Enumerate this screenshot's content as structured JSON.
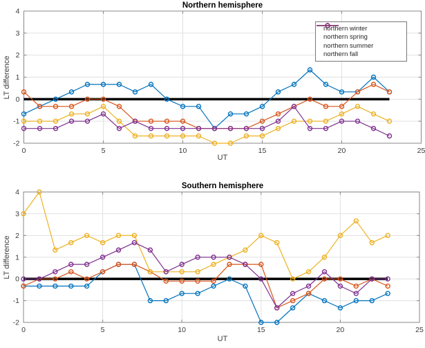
{
  "figure": {
    "background": "#ffffff",
    "grid_color": "#e0e0e0",
    "axis_color": "#888888",
    "tick_label_color": "#3b3b3b",
    "zero_line_color": "#000000"
  },
  "chart_data": [
    {
      "type": "line",
      "title": "Northern hemisphere",
      "xlabel": "UT",
      "ylabel": "LT difference",
      "xlim": [
        0,
        25
      ],
      "ylim": [
        -2,
        4
      ],
      "xticks": [
        0,
        5,
        10,
        15,
        20,
        25
      ],
      "yticks": [
        -2,
        -1,
        0,
        1,
        2,
        3,
        4
      ],
      "grid": true,
      "legend": {
        "position": "top-right",
        "entries": [
          "northern winter",
          "northern spring",
          "northern summer",
          "northern fall"
        ]
      },
      "x": [
        0,
        1,
        2,
        3,
        4,
        5,
        6,
        7,
        8,
        9,
        10,
        11,
        12,
        13,
        14,
        15,
        16,
        17,
        18,
        19,
        20,
        21,
        22,
        23
      ],
      "zero_line": {
        "x_start": 0,
        "x_end": 23,
        "y": 0
      },
      "series": [
        {
          "name": "northern winter",
          "color": "#0072BD",
          "values": [
            -0.67,
            -0.33,
            0,
            0.33,
            0.67,
            0.67,
            0.67,
            0.33,
            0.67,
            0,
            -0.33,
            -0.33,
            -1.33,
            -0.67,
            -0.67,
            -0.33,
            0.33,
            0.67,
            1.33,
            0.67,
            0.33,
            0.33,
            1.0,
            0.33
          ]
        },
        {
          "name": "northern spring",
          "color": "#D95319",
          "values": [
            0.33,
            -0.33,
            -0.33,
            -0.33,
            0,
            0,
            -0.33,
            -1.0,
            -1.0,
            -1.0,
            -1.0,
            -1.33,
            -1.33,
            -1.33,
            -1.33,
            -1.0,
            -0.67,
            -0.33,
            0,
            -0.33,
            -0.33,
            0.33,
            0.67,
            0.33
          ]
        },
        {
          "name": "northern summer",
          "color": "#EDB120",
          "values": [
            -1.0,
            -1.0,
            -1.0,
            -0.67,
            -0.67,
            -0.33,
            -1.0,
            -1.67,
            -1.67,
            -1.67,
            -1.67,
            -1.67,
            -2.0,
            -2.0,
            -1.67,
            -1.67,
            -1.33,
            -1.0,
            -1.0,
            -1.0,
            -0.67,
            -0.33,
            -0.67,
            -1.0
          ]
        },
        {
          "name": "northern fall",
          "color": "#7E2F8E",
          "values": [
            -1.33,
            -1.33,
            -1.33,
            -1.0,
            -1.0,
            -0.67,
            -1.33,
            -1.0,
            -1.33,
            -1.33,
            -1.33,
            -1.33,
            -1.33,
            -1.33,
            -1.33,
            -1.33,
            -1.0,
            -0.33,
            -1.33,
            -1.33,
            -1.0,
            -1.0,
            -1.33,
            -1.67
          ]
        }
      ]
    },
    {
      "type": "line",
      "title": "Southern hemisphere",
      "xlabel": "UT",
      "ylabel": "LT difference",
      "xlim": [
        0,
        25
      ],
      "ylim": [
        -2,
        4
      ],
      "xticks": [
        0,
        5,
        10,
        15,
        20,
        25
      ],
      "yticks": [
        -2,
        -1,
        0,
        1,
        2,
        3,
        4
      ],
      "grid": true,
      "legend": null,
      "x": [
        0,
        1,
        2,
        3,
        4,
        5,
        6,
        7,
        8,
        9,
        10,
        11,
        12,
        13,
        14,
        15,
        16,
        17,
        18,
        19,
        20,
        21,
        22,
        23
      ],
      "zero_line": {
        "x_start": 0,
        "x_end": 23,
        "y": 0
      },
      "series": [
        {
          "name": "northern winter",
          "color": "#0072BD",
          "values": [
            -0.33,
            -0.33,
            -0.33,
            -0.33,
            -0.33,
            0.33,
            0.67,
            0.67,
            -1.0,
            -1.0,
            -0.67,
            -0.67,
            -0.33,
            0,
            -0.33,
            -2.0,
            -2.0,
            -1.33,
            -0.67,
            -1.0,
            -1.33,
            -1.0,
            -1.0,
            -0.67
          ]
        },
        {
          "name": "northern spring",
          "color": "#D95319",
          "values": [
            -0.33,
            0,
            0,
            0.33,
            0,
            0.33,
            0.67,
            0.67,
            0.33,
            -0.1,
            -0.1,
            -0.1,
            -0.1,
            0.67,
            0.67,
            0.67,
            -1.33,
            -1.0,
            -0.67,
            0,
            0,
            -0.33,
            0,
            -0.33
          ]
        },
        {
          "name": "northern summer",
          "color": "#EDB120",
          "values": [
            3.0,
            4.0,
            1.33,
            1.67,
            2.0,
            1.67,
            2.0,
            2.0,
            0.33,
            0.33,
            0.33,
            0.33,
            0.67,
            1.0,
            1.33,
            2.0,
            1.67,
            0,
            0.33,
            1.0,
            2.0,
            2.67,
            1.67,
            2.0
          ]
        },
        {
          "name": "northern fall",
          "color": "#7E2F8E",
          "values": [
            0,
            0,
            0.33,
            0.67,
            0.67,
            1.0,
            1.33,
            1.67,
            1.33,
            0.33,
            0.67,
            1.0,
            1.0,
            1.0,
            0.67,
            0,
            -1.33,
            -0.67,
            -0.33,
            0.33,
            -0.33,
            -0.67,
            0,
            0
          ]
        }
      ]
    }
  ]
}
